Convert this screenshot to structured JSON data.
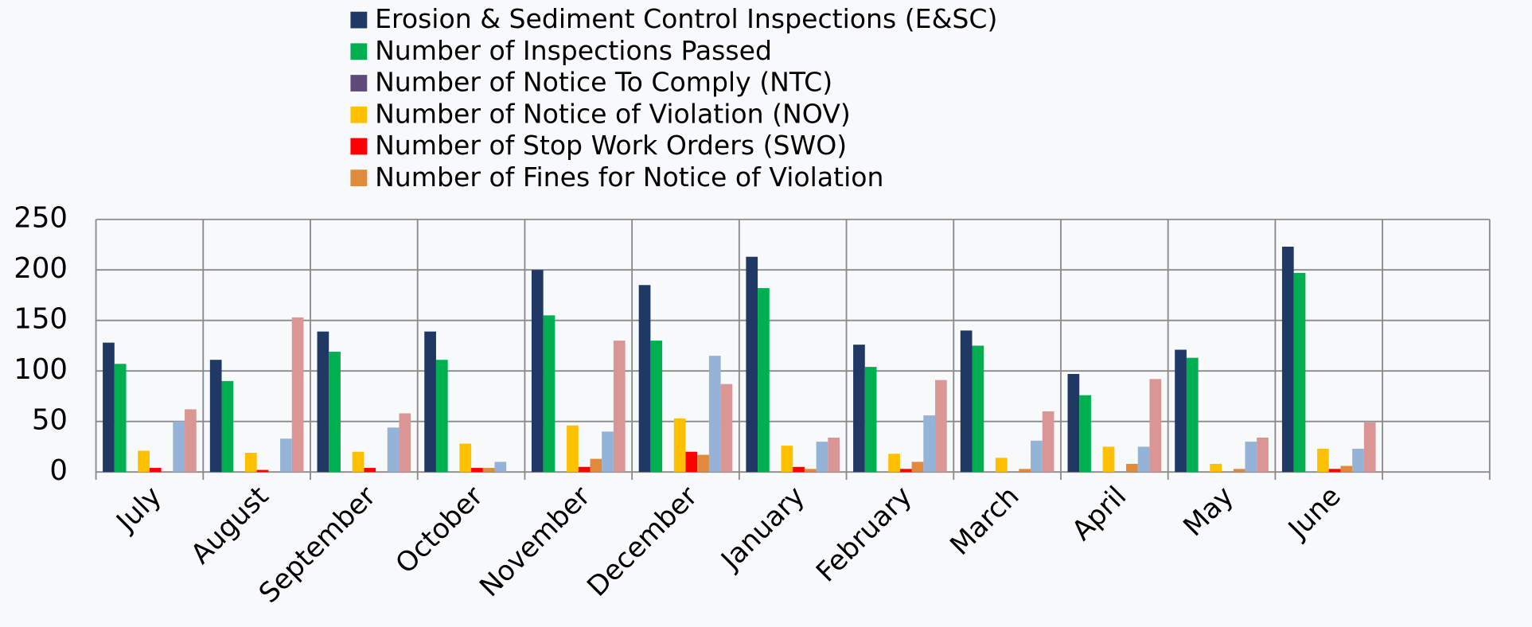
{
  "chart_data": {
    "type": "bar",
    "categories": [
      "July",
      "August",
      "September",
      "October",
      "November",
      "December",
      "January",
      "February",
      "March",
      "April",
      "May",
      "June",
      null
    ],
    "series": [
      {
        "name": "Erosion & Sediment Control Inspections (E&SC)",
        "color": "#1f3864",
        "values": [
          128,
          111,
          139,
          139,
          200,
          185,
          213,
          126,
          140,
          97,
          121,
          223,
          null
        ]
      },
      {
        "name": "Number of Inspections Passed",
        "color": "#00b050",
        "values": [
          107,
          90,
          119,
          111,
          155,
          130,
          182,
          104,
          125,
          76,
          113,
          197,
          null
        ]
      },
      {
        "name": "Number of Notice To Comply (NTC)",
        "color": "#604a7b",
        "values": [
          0,
          0,
          0,
          0,
          0,
          0,
          0,
          0,
          0,
          0,
          0,
          0,
          null
        ]
      },
      {
        "name": "Number of Notice of Violation (NOV)",
        "color": "#ffc000",
        "values": [
          21,
          19,
          20,
          28,
          46,
          53,
          26,
          18,
          14,
          25,
          8,
          23,
          null
        ]
      },
      {
        "name": "Number of Stop Work Orders (SWO)",
        "color": "#ff0000",
        "values": [
          4,
          2,
          4,
          4,
          5,
          20,
          5,
          3,
          0,
          0,
          0,
          3,
          null
        ]
      },
      {
        "name": "Number of Fines for Notice of Violation",
        "color": "#e08a3c",
        "values": [
          0,
          0,
          0,
          4,
          13,
          17,
          3,
          10,
          3,
          8,
          3,
          6,
          null
        ]
      },
      {
        "color": "#95b3d7",
        "values": [
          50,
          33,
          44,
          10,
          40,
          115,
          30,
          56,
          31,
          25,
          30,
          23,
          null
        ]
      },
      {
        "color": "#d99694",
        "values": [
          62,
          153,
          58,
          0,
          130,
          87,
          34,
          91,
          60,
          92,
          34,
          49,
          null
        ]
      }
    ],
    "ylim": [
      0,
      250
    ],
    "yticks": [
      0,
      50,
      100,
      150,
      200,
      250
    ],
    "grid": true
  }
}
